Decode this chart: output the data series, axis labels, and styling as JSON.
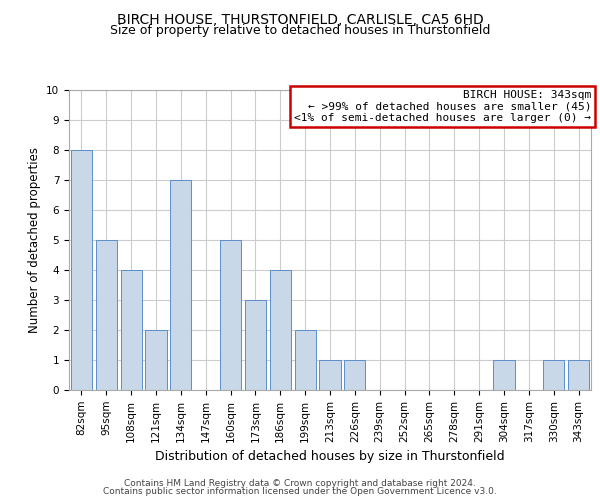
{
  "title": "BIRCH HOUSE, THURSTONFIELD, CARLISLE, CA5 6HD",
  "subtitle": "Size of property relative to detached houses in Thurstonfield",
  "xlabel": "Distribution of detached houses by size in Thurstonfield",
  "ylabel": "Number of detached properties",
  "categories": [
    "82sqm",
    "95sqm",
    "108sqm",
    "121sqm",
    "134sqm",
    "147sqm",
    "160sqm",
    "173sqm",
    "186sqm",
    "199sqm",
    "213sqm",
    "226sqm",
    "239sqm",
    "252sqm",
    "265sqm",
    "278sqm",
    "291sqm",
    "304sqm",
    "317sqm",
    "330sqm",
    "343sqm"
  ],
  "values": [
    8,
    5,
    4,
    2,
    7,
    0,
    5,
    3,
    4,
    2,
    1,
    1,
    0,
    0,
    0,
    0,
    0,
    1,
    0,
    1,
    1
  ],
  "bar_color": "#c8d8e8",
  "bar_edge_color": "#5b8fc9",
  "ylim": [
    0,
    10
  ],
  "yticks": [
    0,
    1,
    2,
    3,
    4,
    5,
    6,
    7,
    8,
    9,
    10
  ],
  "grid_color": "#cccccc",
  "annotation_line1": "BIRCH HOUSE: 343sqm",
  "annotation_line2": "← >99% of detached houses are smaller (45)",
  "annotation_line3": "<1% of semi-detached houses are larger (0) →",
  "annotation_box_color": "#ffffff",
  "annotation_box_edge_color": "#cc0000",
  "footer_line1": "Contains HM Land Registry data © Crown copyright and database right 2024.",
  "footer_line2": "Contains public sector information licensed under the Open Government Licence v3.0.",
  "title_fontsize": 10,
  "subtitle_fontsize": 9,
  "xlabel_fontsize": 9,
  "ylabel_fontsize": 8.5,
  "tick_fontsize": 7.5,
  "annotation_fontsize": 8,
  "footer_fontsize": 6.5,
  "background_color": "#ffffff",
  "spine_color": "#aaaaaa"
}
